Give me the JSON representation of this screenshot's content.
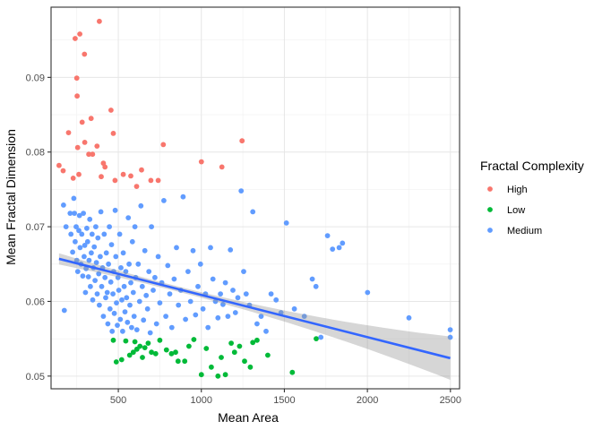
{
  "chart_data": {
    "type": "scatter",
    "xlabel": "Mean Area",
    "ylabel": "Mean Fractal Dimension",
    "xlim": [
      95,
      2555
    ],
    "ylim": [
      0.0483,
      0.0994
    ],
    "x_ticks": [
      500,
      1000,
      1500,
      2000,
      2500
    ],
    "y_ticks": [
      0.05,
      0.06,
      0.07,
      0.08,
      0.09
    ],
    "x_tick_labels": [
      "500",
      "1000",
      "1500",
      "2000",
      "2500"
    ],
    "y_tick_labels": [
      "0.05",
      "0.06",
      "0.07",
      "0.08",
      "0.09"
    ],
    "grid": true,
    "legend": {
      "title": "Fractal Complexity",
      "position": "right",
      "items": [
        {
          "label": "High",
          "color": "#F8766D"
        },
        {
          "label": "Low",
          "color": "#00BA38"
        },
        {
          "label": "Medium",
          "color": "#619CFF"
        }
      ]
    },
    "trend": {
      "method": "linear",
      "color": "#3366FF",
      "band_color": "#999999",
      "x": [
        143,
        2499
      ],
      "y": [
        0.0657,
        0.0524
      ],
      "ci_lower": [
        0.065,
        0.0495
      ],
      "ci_upper": [
        0.0665,
        0.0553
      ]
    },
    "series": [
      {
        "name": "High",
        "color": "#F8766D",
        "points": [
          [
            143,
            0.0782
          ],
          [
            168,
            0.0775
          ],
          [
            200,
            0.0826
          ],
          [
            228,
            0.0765
          ],
          [
            240,
            0.0952
          ],
          [
            250,
            0.0899
          ],
          [
            252,
            0.0875
          ],
          [
            255,
            0.0806
          ],
          [
            262,
            0.077
          ],
          [
            268,
            0.0958
          ],
          [
            282,
            0.084
          ],
          [
            296,
            0.0931
          ],
          [
            298,
            0.0813
          ],
          [
            322,
            0.0797
          ],
          [
            336,
            0.0845
          ],
          [
            345,
            0.0797
          ],
          [
            372,
            0.0808
          ],
          [
            386,
            0.0975
          ],
          [
            397,
            0.0767
          ],
          [
            410,
            0.0785
          ],
          [
            420,
            0.078
          ],
          [
            456,
            0.0856
          ],
          [
            470,
            0.0825
          ],
          [
            480,
            0.0762
          ],
          [
            530,
            0.077
          ],
          [
            575,
            0.0768
          ],
          [
            610,
            0.0754
          ],
          [
            640,
            0.0776
          ],
          [
            696,
            0.0762
          ],
          [
            740,
            0.0762
          ],
          [
            771,
            0.081
          ],
          [
            1000,
            0.0787
          ],
          [
            1124,
            0.078
          ],
          [
            1245,
            0.0815
          ]
        ]
      },
      {
        "name": "Low",
        "color": "#00BA38",
        "points": [
          [
            470,
            0.0548
          ],
          [
            488,
            0.0519
          ],
          [
            520,
            0.0522
          ],
          [
            545,
            0.0547
          ],
          [
            568,
            0.0528
          ],
          [
            590,
            0.0532
          ],
          [
            600,
            0.0546
          ],
          [
            612,
            0.0536
          ],
          [
            630,
            0.054
          ],
          [
            645,
            0.0525
          ],
          [
            660,
            0.0538
          ],
          [
            680,
            0.0544
          ],
          [
            700,
            0.0532
          ],
          [
            725,
            0.053
          ],
          [
            750,
            0.0548
          ],
          [
            790,
            0.0535
          ],
          [
            820,
            0.053
          ],
          [
            845,
            0.0532
          ],
          [
            860,
            0.052
          ],
          [
            900,
            0.052
          ],
          [
            925,
            0.054
          ],
          [
            955,
            0.0549
          ],
          [
            1000,
            0.0502
          ],
          [
            1030,
            0.0537
          ],
          [
            1060,
            0.0512
          ],
          [
            1100,
            0.05
          ],
          [
            1120,
            0.0525
          ],
          [
            1145,
            0.0502
          ],
          [
            1180,
            0.0544
          ],
          [
            1200,
            0.0532
          ],
          [
            1230,
            0.054
          ],
          [
            1260,
            0.052
          ],
          [
            1295,
            0.0512
          ],
          [
            1310,
            0.0545
          ],
          [
            1335,
            0.0548
          ],
          [
            1400,
            0.0528
          ],
          [
            1548,
            0.0505
          ],
          [
            1692,
            0.055
          ]
        ]
      },
      {
        "name": "Medium",
        "color": "#619CFF",
        "points": [
          [
            170,
            0.0729
          ],
          [
            175,
            0.0588
          ],
          [
            185,
            0.07
          ],
          [
            210,
            0.0718
          ],
          [
            215,
            0.069
          ],
          [
            225,
            0.0666
          ],
          [
            232,
            0.0738
          ],
          [
            236,
            0.0718
          ],
          [
            240,
            0.068
          ],
          [
            246,
            0.07
          ],
          [
            250,
            0.0655
          ],
          [
            256,
            0.064
          ],
          [
            262,
            0.0695
          ],
          [
            266,
            0.0715
          ],
          [
            270,
            0.0672
          ],
          [
            275,
            0.065
          ],
          [
            280,
            0.069
          ],
          [
            286,
            0.0634
          ],
          [
            290,
            0.0718
          ],
          [
            294,
            0.066
          ],
          [
            298,
            0.0675
          ],
          [
            302,
            0.0612
          ],
          [
            306,
            0.0644
          ],
          [
            310,
            0.0698
          ],
          [
            315,
            0.068
          ],
          [
            320,
            0.0633
          ],
          [
            324,
            0.0655
          ],
          [
            328,
            0.071
          ],
          [
            332,
            0.062
          ],
          [
            337,
            0.0665
          ],
          [
            342,
            0.069
          ],
          [
            346,
            0.0602
          ],
          [
            350,
            0.0645
          ],
          [
            355,
            0.0673
          ],
          [
            360,
            0.0628
          ],
          [
            364,
            0.07
          ],
          [
            368,
            0.0652
          ],
          [
            373,
            0.061
          ],
          [
            377,
            0.0685
          ],
          [
            382,
            0.0637
          ],
          [
            386,
            0.0595
          ],
          [
            391,
            0.066
          ],
          [
            395,
            0.072
          ],
          [
            400,
            0.062
          ],
          [
            405,
            0.0645
          ],
          [
            410,
            0.058
          ],
          [
            415,
            0.069
          ],
          [
            420,
            0.0632
          ],
          [
            424,
            0.0605
          ],
          [
            428,
            0.0665
          ],
          [
            433,
            0.0612
          ],
          [
            437,
            0.057
          ],
          [
            441,
            0.065
          ],
          [
            446,
            0.07
          ],
          [
            450,
            0.059
          ],
          [
            455,
            0.0626
          ],
          [
            459,
            0.0676
          ],
          [
            463,
            0.056
          ],
          [
            468,
            0.061
          ],
          [
            472,
            0.064
          ],
          [
            476,
            0.0584
          ],
          [
            481,
            0.0722
          ],
          [
            485,
            0.066
          ],
          [
            489,
            0.0598
          ],
          [
            494,
            0.0568
          ],
          [
            498,
            0.0632
          ],
          [
            503,
            0.0615
          ],
          [
            508,
            0.069
          ],
          [
            512,
            0.0576
          ],
          [
            516,
            0.0645
          ],
          [
            521,
            0.0602
          ],
          [
            526,
            0.056
          ],
          [
            530,
            0.0665
          ],
          [
            535,
            0.062
          ],
          [
            540,
            0.0586
          ],
          [
            545,
            0.064
          ],
          [
            550,
            0.0605
          ],
          [
            555,
            0.0572
          ],
          [
            560,
            0.0712
          ],
          [
            565,
            0.065
          ],
          [
            570,
            0.0595
          ],
          [
            575,
            0.0625
          ],
          [
            580,
            0.0565
          ],
          [
            585,
            0.068
          ],
          [
            590,
            0.0612
          ],
          [
            595,
            0.058
          ],
          [
            600,
            0.07
          ],
          [
            605,
            0.0632
          ],
          [
            612,
            0.0562
          ],
          [
            620,
            0.065
          ],
          [
            628,
            0.06
          ],
          [
            636,
            0.0728
          ],
          [
            644,
            0.062
          ],
          [
            652,
            0.0575
          ],
          [
            660,
            0.0668
          ],
          [
            668,
            0.0608
          ],
          [
            676,
            0.059
          ],
          [
            684,
            0.064
          ],
          [
            692,
            0.0558
          ],
          [
            700,
            0.07
          ],
          [
            710,
            0.0615
          ],
          [
            720,
            0.0632
          ],
          [
            730,
            0.057
          ],
          [
            740,
            0.066
          ],
          [
            750,
            0.0598
          ],
          [
            762,
            0.0625
          ],
          [
            774,
            0.0735
          ],
          [
            786,
            0.058
          ],
          [
            798,
            0.0648
          ],
          [
            810,
            0.061
          ],
          [
            822,
            0.0565
          ],
          [
            836,
            0.063
          ],
          [
            850,
            0.0672
          ],
          [
            862,
            0.0595
          ],
          [
            876,
            0.0615
          ],
          [
            890,
            0.074
          ],
          [
            905,
            0.0576
          ],
          [
            920,
            0.064
          ],
          [
            935,
            0.06
          ],
          [
            950,
            0.0668
          ],
          [
            965,
            0.0582
          ],
          [
            980,
            0.062
          ],
          [
            995,
            0.065
          ],
          [
            1010,
            0.059
          ],
          [
            1025,
            0.061
          ],
          [
            1040,
            0.0565
          ],
          [
            1055,
            0.0672
          ],
          [
            1070,
            0.063
          ],
          [
            1085,
            0.06
          ],
          [
            1100,
            0.0578
          ],
          [
            1115,
            0.061
          ],
          [
            1130,
            0.0596
          ],
          [
            1145,
            0.0625
          ],
          [
            1160,
            0.058
          ],
          [
            1175,
            0.0669
          ],
          [
            1190,
            0.0615
          ],
          [
            1205,
            0.0585
          ],
          [
            1220,
            0.0605
          ],
          [
            1240,
            0.0748
          ],
          [
            1255,
            0.064
          ],
          [
            1270,
            0.061
          ],
          [
            1290,
            0.0595
          ],
          [
            1310,
            0.072
          ],
          [
            1335,
            0.057
          ],
          [
            1360,
            0.058
          ],
          [
            1390,
            0.056
          ],
          [
            1420,
            0.061
          ],
          [
            1450,
            0.0602
          ],
          [
            1480,
            0.0585
          ],
          [
            1512,
            0.0705
          ],
          [
            1560,
            0.059
          ],
          [
            1620,
            0.058
          ],
          [
            1668,
            0.063
          ],
          [
            1690,
            0.062
          ],
          [
            1720,
            0.0552
          ],
          [
            1760,
            0.0688
          ],
          [
            1790,
            0.067
          ],
          [
            1830,
            0.0672
          ],
          [
            1850,
            0.0678
          ],
          [
            2001,
            0.0612
          ],
          [
            2250,
            0.0578
          ],
          [
            2499,
            0.0562
          ],
          [
            2499,
            0.0552
          ]
        ]
      }
    ]
  }
}
